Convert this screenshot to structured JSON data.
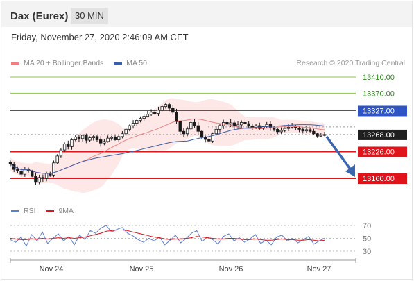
{
  "header": {
    "instrument": "Dax (Eurex)",
    "timeframe": "30 MIN"
  },
  "datetime": "Friday, November 27, 2020 2:46:09 AM CET",
  "credit": "Research © 2020 Trading Central",
  "colors": {
    "ma20": "#f08080",
    "ma50": "#3a5ea8",
    "bollinger_fill": "#fde3e3",
    "target_green": "#8bc34a",
    "pivot_blue": "#2f55c4",
    "support_red": "#e0141b",
    "candle": "#1a1a1a",
    "arrow": "#3a67b0",
    "rsi": "#5a7fd1",
    "rsi_ma": "#e0141b"
  },
  "chart_data": [
    {
      "type": "candlestick",
      "title": "",
      "legend": [
        {
          "label": "MA 20 + Bollinger Bands",
          "color": "#f08080"
        },
        {
          "label": "MA 50",
          "color": "#3a5ea8"
        }
      ],
      "legend_position": "top-left",
      "x_ticks": [
        "Nov 24",
        "Nov 25",
        "Nov 26",
        "Nov 27"
      ],
      "ylim": [
        13120,
        13440
      ],
      "price_close": [
        13195,
        13182,
        13178,
        13170,
        13182,
        13178,
        13165,
        13150,
        13162,
        13160,
        13172,
        13168,
        13198,
        13215,
        13230,
        13245,
        13238,
        13255,
        13262,
        13258,
        13266,
        13254,
        13260,
        13263,
        13255,
        13247,
        13251,
        13259,
        13261,
        13255,
        13263,
        13270,
        13281,
        13290,
        13296,
        13303,
        13308,
        13313,
        13318,
        13323,
        13320,
        13328,
        13337,
        13342,
        13333,
        13323,
        13300,
        13276,
        13270,
        13282,
        13298,
        13290,
        13276,
        13262,
        13256,
        13252,
        13270,
        13281,
        13290,
        13298,
        13294,
        13297,
        13289,
        13292,
        13298,
        13295,
        13289,
        13286,
        13290,
        13283,
        13288,
        13293,
        13286,
        13281,
        13275,
        13278,
        13283,
        13286,
        13289,
        13284,
        13281,
        13277,
        13280,
        13276,
        13270,
        13264,
        13266,
        13268
      ],
      "levels": [
        {
          "value": 13410.0,
          "label": "13410.00",
          "kind": "resistance"
        },
        {
          "value": 13370.0,
          "label": "13370.00",
          "kind": "resistance"
        },
        {
          "value": 13327.0,
          "label": "13327.00",
          "kind": "pivot"
        },
        {
          "value": 13268.0,
          "label": "13268.00",
          "kind": "last"
        },
        {
          "value": 13226.0,
          "label": "13226.00",
          "kind": "support"
        },
        {
          "value": 13160.0,
          "label": "13160.00",
          "kind": "support"
        }
      ],
      "forecast": {
        "from": 13268,
        "to": 13160,
        "direction": "down"
      }
    },
    {
      "type": "line",
      "title": "",
      "legend": [
        {
          "label": "RSI",
          "color": "#5a7fd1"
        },
        {
          "label": "9MA",
          "color": "#e0141b"
        }
      ],
      "legend_position": "top-left",
      "ylim": [
        20,
        80
      ],
      "y_ticks": [
        "70",
        "50",
        "30"
      ],
      "series": [
        {
          "name": "RSI",
          "values": [
            48,
            44,
            52,
            38,
            56,
            46,
            60,
            42,
            50,
            57,
            46,
            53,
            40,
            55,
            48,
            62,
            58,
            66,
            70,
            60,
            64,
            67,
            58,
            54,
            48,
            44,
            50,
            46,
            52,
            40,
            47,
            55,
            43,
            50,
            58,
            62,
            45,
            52,
            48,
            41,
            53,
            57,
            46,
            51,
            44,
            49,
            56,
            42,
            47,
            40,
            52,
            55,
            46,
            50,
            43,
            48,
            53,
            41,
            46,
            50
          ]
        },
        {
          "name": "9MA",
          "values": [
            50,
            49,
            48,
            48,
            49,
            49,
            50,
            49,
            50,
            51,
            50,
            51,
            50,
            51,
            52,
            54,
            56,
            58,
            61,
            62,
            63,
            63,
            62,
            60,
            58,
            56,
            54,
            52,
            51,
            49,
            48,
            49,
            49,
            50,
            51,
            53,
            52,
            51,
            50,
            49,
            49,
            50,
            50,
            49,
            48,
            48,
            49,
            48,
            47,
            47,
            48,
            49,
            48,
            48,
            47,
            47,
            48,
            47,
            46,
            47
          ]
        }
      ]
    }
  ]
}
